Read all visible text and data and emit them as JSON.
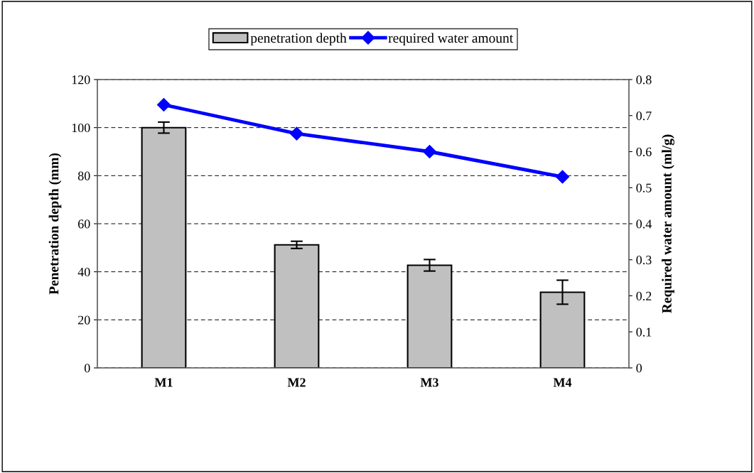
{
  "chart_data": {
    "type": "bar",
    "categories": [
      "M1",
      "M2",
      "M3",
      "M4"
    ],
    "series": [
      {
        "name": "penetration depth",
        "color": "#c0c0c0",
        "values": [
          100,
          51.2,
          42.7,
          31.5
        ],
        "errors": [
          2.3,
          1.5,
          2.4,
          5
        ]
      },
      {
        "name": "required water amount",
        "type": "line",
        "axis": "y2",
        "color": "#0000ff",
        "values": [
          0.73,
          0.65,
          0.6,
          0.53
        ],
        "marker": "diamond",
        "line_style": "solid"
      }
    ],
    "ylabel": "Penetration depth (mm)",
    "y2label": "Required water amount (ml/g)",
    "ylim": [
      0,
      120
    ],
    "yticks": [
      0,
      20,
      40,
      60,
      80,
      100,
      120
    ],
    "y2lim": [
      0,
      0.8
    ],
    "y2ticks": [
      0,
      0.1,
      0.2,
      0.3,
      0.4,
      0.5,
      0.6,
      0.7,
      0.8
    ],
    "grid": "y",
    "legend": "top"
  }
}
